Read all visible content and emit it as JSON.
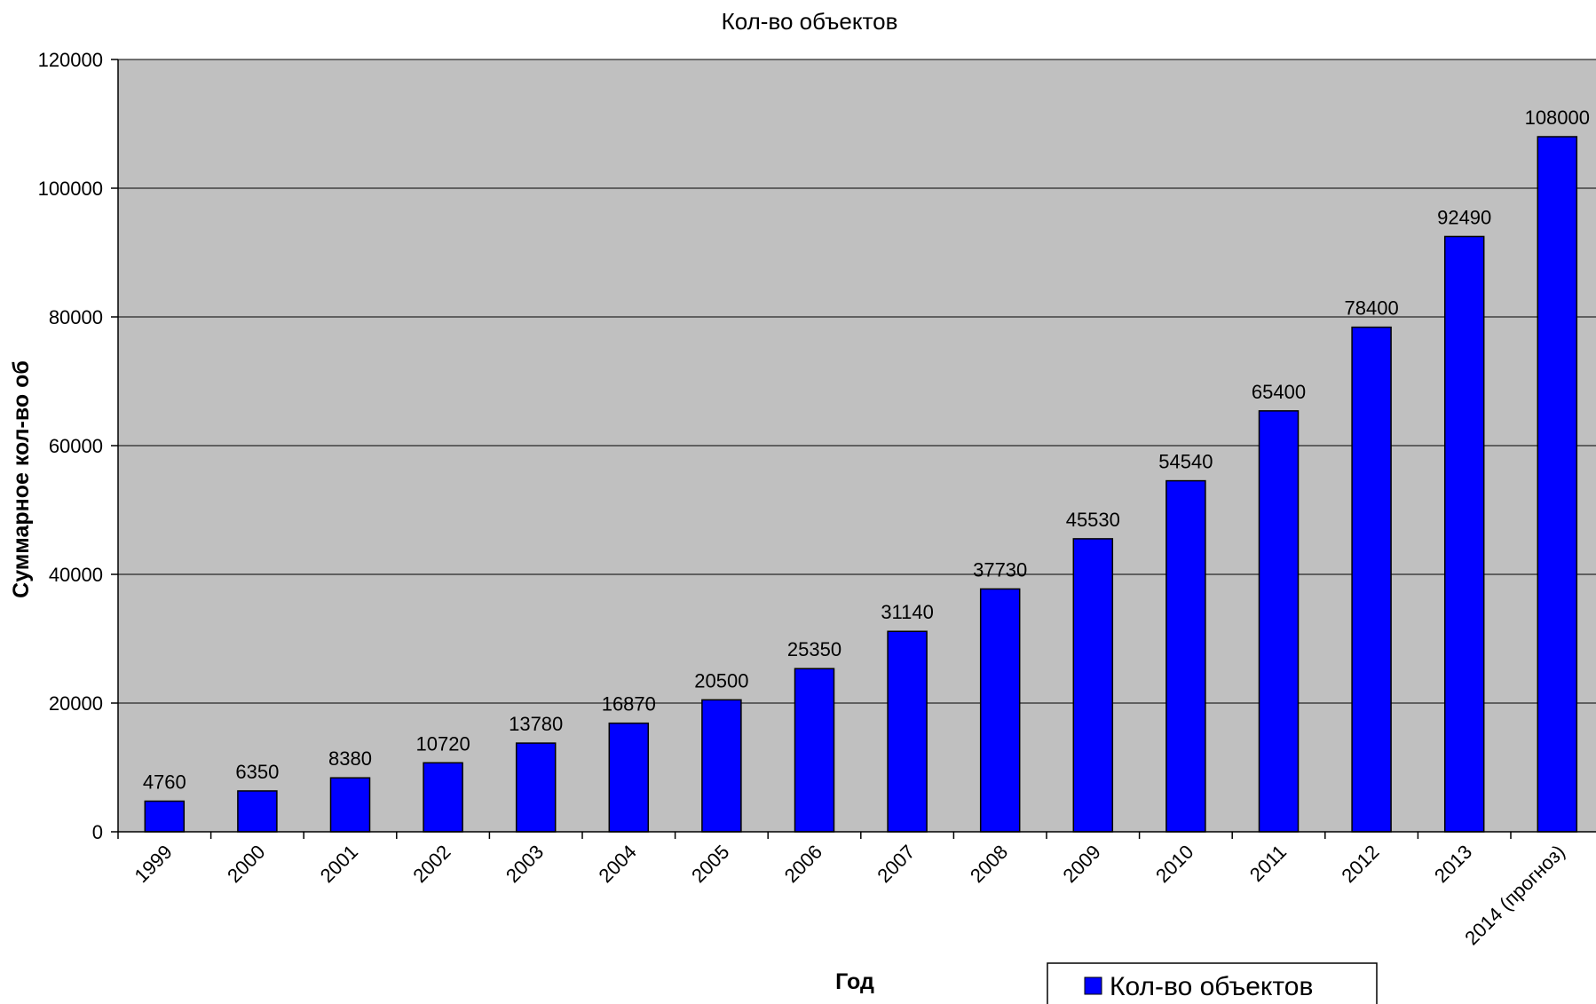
{
  "chart_data": {
    "type": "bar",
    "title": "Кол-во объектов",
    "xlabel": "Год",
    "ylabel": "Суммарное кол-во об",
    "categories": [
      "1999",
      "2000",
      "2001",
      "2002",
      "2003",
      "2004",
      "2005",
      "2006",
      "2007",
      "2008",
      "2009",
      "2010",
      "2011",
      "2012",
      "2013",
      "2014 (прогноз)"
    ],
    "series": [
      {
        "name": "Кол-во объектов",
        "values": [
          4760,
          6350,
          8380,
          10720,
          13780,
          16870,
          20500,
          25350,
          31140,
          37730,
          45530,
          54540,
          65400,
          78400,
          92490,
          108000
        ]
      }
    ],
    "data_labels": [
      "4760",
      "6350",
      "8380",
      "10720",
      "13780",
      "16870",
      "20500",
      "25350",
      "31140",
      "37730",
      "45530",
      "54540",
      "65400",
      "78400",
      "92490",
      "108000"
    ],
    "ylim": [
      0,
      120000
    ],
    "yticks": [
      "0",
      "20000",
      "40000",
      "60000",
      "80000",
      "100000",
      "120000"
    ],
    "grid": true,
    "legend_position": "bottom-right",
    "colors": {
      "bar": "#0000ff",
      "plot_background": "#c0c0c0",
      "gridline": "#000000"
    }
  }
}
